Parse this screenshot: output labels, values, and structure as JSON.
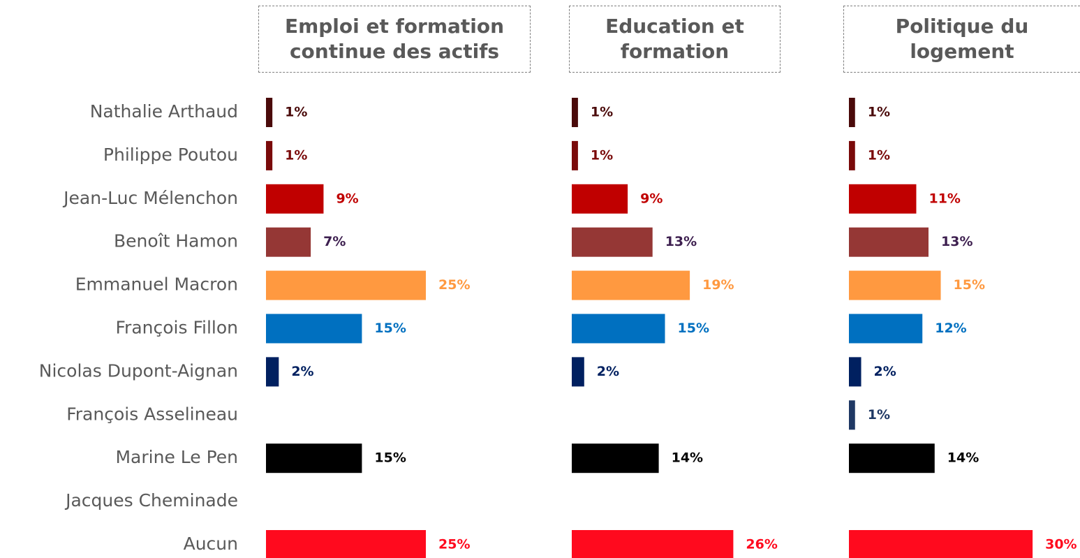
{
  "chart_data": [
    {
      "type": "bar",
      "title": "Emploi et formation continue des actifs",
      "categories": [
        "Nathalie Arthaud",
        "Philippe Poutou",
        "Jean-Luc Mélenchon",
        "Benoît Hamon",
        "Emmanuel Macron",
        "François Fillon",
        "Nicolas Dupont-Aignan",
        "François Asselineau",
        "Marine Le Pen",
        "Jacques Cheminade",
        "Aucun"
      ],
      "values": [
        1,
        1,
        9,
        7,
        25,
        15,
        2,
        null,
        15,
        null,
        25
      ],
      "value_labels": [
        "1%",
        "1%",
        "9%",
        "7%",
        "25%",
        "15%",
        "2%",
        null,
        "15%",
        null,
        "25%"
      ],
      "colors": [
        "#4a0a0a",
        "#7a0a0a",
        "#c00000",
        "#953735",
        "#ff9940",
        "#0070c0",
        "#002060",
        "#1f3864",
        "#000000",
        "#7f7f7f",
        "#ff0a1e"
      ],
      "label_colors": [
        "#4a0a0a",
        "#7a0a0a",
        "#c00000",
        "#3d1f4f",
        "#ff9940",
        "#0070c0",
        "#002060",
        "#1f3864",
        "#000000",
        "#7f7f7f",
        "#ff0a1e"
      ]
    },
    {
      "type": "bar",
      "title": "Education et formation",
      "values": [
        1,
        1,
        9,
        13,
        19,
        15,
        2,
        null,
        14,
        null,
        26
      ],
      "value_labels": [
        "1%",
        "1%",
        "9%",
        "13%",
        "19%",
        "15%",
        "2%",
        null,
        "14%",
        null,
        "26%"
      ],
      "colors": [
        "#4a0a0a",
        "#7a0a0a",
        "#c00000",
        "#953735",
        "#ff9940",
        "#0070c0",
        "#002060",
        "#1f3864",
        "#000000",
        "#7f7f7f",
        "#ff0a1e"
      ],
      "label_colors": [
        "#4a0a0a",
        "#7a0a0a",
        "#c00000",
        "#3d1f4f",
        "#ff9940",
        "#0070c0",
        "#002060",
        "#1f3864",
        "#000000",
        "#7f7f7f",
        "#ff0a1e"
      ]
    },
    {
      "type": "bar",
      "title": "Politique du logement",
      "values": [
        1,
        1,
        11,
        13,
        15,
        12,
        2,
        1,
        14,
        null,
        30
      ],
      "value_labels": [
        "1%",
        "1%",
        "11%",
        "13%",
        "15%",
        "12%",
        "2%",
        "1%",
        "14%",
        null,
        "30%"
      ],
      "colors": [
        "#4a0a0a",
        "#7a0a0a",
        "#c00000",
        "#953735",
        "#ff9940",
        "#0070c0",
        "#002060",
        "#1f3864",
        "#000000",
        "#7f7f7f",
        "#ff0a1e"
      ],
      "label_colors": [
        "#4a0a0a",
        "#7a0a0a",
        "#c00000",
        "#3d1f4f",
        "#ff9940",
        "#0070c0",
        "#002060",
        "#1f3864",
        "#000000",
        "#7f7f7f",
        "#ff0a1e"
      ]
    }
  ]
}
